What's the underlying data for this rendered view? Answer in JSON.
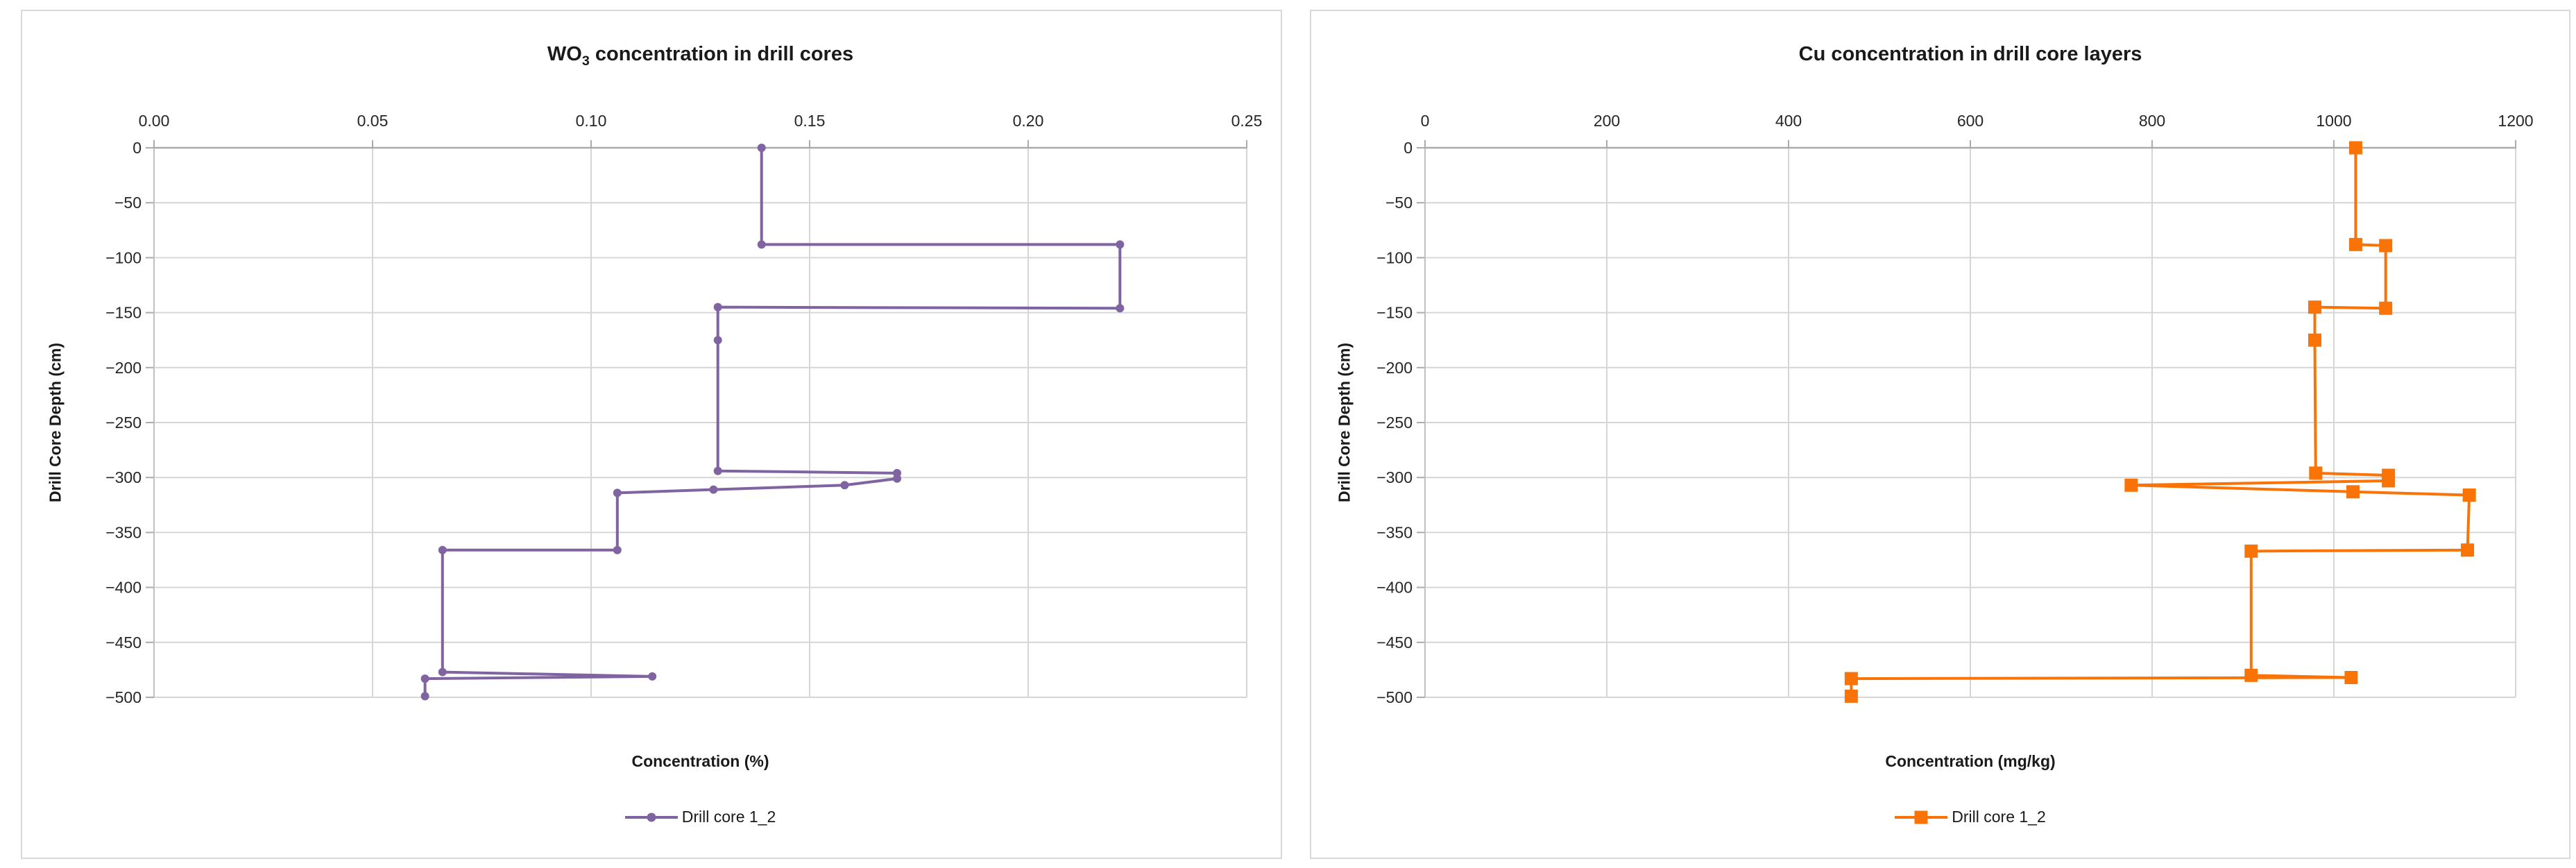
{
  "page": {
    "background": "#ffffff",
    "panel_border_color": "#d9d9d9",
    "gridline_color": "#d6d6d6",
    "zero_line_color": "#ababab",
    "axis_line_color": "#c0c0c0",
    "tick_color": "#ababab",
    "text_color": "#262626"
  },
  "chart_data": [
    {
      "type": "line",
      "title": "WO3 concentration in drill cores",
      "title_parts": {
        "base": "WO",
        "sub": "3",
        "rest": " concentration in drill cores"
      },
      "xlabel": "Concentration (%)",
      "ylabel": "Drill Core Depth (cm)",
      "legend": "Drill core 1_2",
      "series_name": "Drill core 1_2",
      "color": "#8064A2",
      "marker": "circle",
      "grid": true,
      "legend_position": "bottom",
      "x_axis_position": "top",
      "xlim": [
        0,
        0.25
      ],
      "ylim": [
        -500,
        0
      ],
      "xtick_values": [
        0,
        0.05,
        0.1,
        0.15,
        0.2,
        0.25
      ],
      "xtick_labels": [
        "0.00",
        "0.05",
        "0.10",
        "0.15",
        "0.20",
        "0.25"
      ],
      "ytick_values": [
        0,
        -50,
        -100,
        -150,
        -200,
        -250,
        -300,
        -350,
        -400,
        -450,
        -500
      ],
      "ytick_labels": [
        "0",
        "−50",
        "−100",
        "−150",
        "−200",
        "−250",
        "−300",
        "−350",
        "−400",
        "−450",
        "−500"
      ],
      "points": [
        [
          0.139,
          0
        ],
        [
          0.139,
          -88
        ],
        [
          0.221,
          -88
        ],
        [
          0.221,
          -146
        ],
        [
          0.129,
          -145
        ],
        [
          0.129,
          -175
        ],
        [
          0.129,
          -294
        ],
        [
          0.17,
          -296
        ],
        [
          0.17,
          -301
        ],
        [
          0.158,
          -307
        ],
        [
          0.128,
          -311
        ],
        [
          0.106,
          -314
        ],
        [
          0.106,
          -366
        ],
        [
          0.066,
          -366
        ],
        [
          0.066,
          -477
        ],
        [
          0.114,
          -481
        ],
        [
          0.062,
          -483
        ],
        [
          0.062,
          -499
        ]
      ]
    },
    {
      "type": "line",
      "title": "Cu concentration in drill core layers",
      "title_parts": {
        "base": "Cu concentration in drill core layers",
        "sub": "",
        "rest": ""
      },
      "xlabel": "Concentration (mg/kg)",
      "ylabel": "Drill Core Depth (cm)",
      "legend": "Drill core 1_2",
      "series_name": "Drill core 1_2",
      "color": "#FA7306",
      "marker": "square",
      "grid": true,
      "legend_position": "bottom",
      "x_axis_position": "top",
      "xlim": [
        0,
        1200
      ],
      "ylim": [
        -500,
        0
      ],
      "xtick_values": [
        0,
        200,
        400,
        600,
        800,
        1000,
        1200
      ],
      "xtick_labels": [
        "0",
        "200",
        "400",
        "600",
        "800",
        "1000",
        "1200"
      ],
      "ytick_values": [
        0,
        -50,
        -100,
        -150,
        -200,
        -250,
        -300,
        -350,
        -400,
        -450,
        -500
      ],
      "ytick_labels": [
        "0",
        "−50",
        "−100",
        "−150",
        "−200",
        "−250",
        "−300",
        "−350",
        "−400",
        "−450",
        "−500"
      ],
      "points": [
        [
          1024,
          0
        ],
        [
          1024,
          -88
        ],
        [
          1057,
          -89
        ],
        [
          1057,
          -146
        ],
        [
          979,
          -145
        ],
        [
          979,
          -175
        ],
        [
          980,
          -296
        ],
        [
          1060,
          -298
        ],
        [
          1060,
          -303
        ],
        [
          777,
          -307
        ],
        [
          1021,
          -313
        ],
        [
          1149,
          -316
        ],
        [
          1147,
          -366
        ],
        [
          909,
          -367
        ],
        [
          909,
          -480
        ],
        [
          1019,
          -482
        ],
        [
          469,
          -483
        ],
        [
          469,
          -499
        ]
      ]
    }
  ]
}
